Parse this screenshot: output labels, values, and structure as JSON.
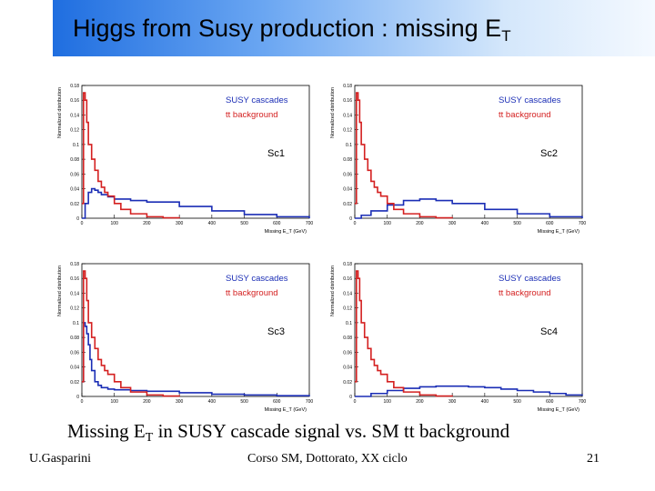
{
  "slide": {
    "title": "Higgs from Susy production : missing E",
    "title_sub": "T",
    "caption_pre": "Missing E",
    "caption_sub": "T",
    "caption_post": " in SUSY cascade signal vs. SM tt background",
    "footer_left": "U.Gasparini",
    "footer_center": "Corso SM, Dottorato, XX ciclo",
    "page_number": "21"
  },
  "colors": {
    "signal": "#1a2db5",
    "background": "#d42020",
    "title_bar": "#1f6ee0"
  },
  "chart_data": [
    {
      "type": "line",
      "panel_label": "Sc1",
      "xlabel": "Missing E_T (GeV)",
      "ylabel": "Normalized distribution",
      "xlim": [
        0,
        700
      ],
      "ylim": [
        0,
        0.18
      ],
      "xticks": [
        "0",
        "100",
        "200",
        "300",
        "400",
        "500",
        "600",
        "700"
      ],
      "yticks": [
        "0",
        "0.02",
        "0.04",
        "0.06",
        "0.08",
        "0.1",
        "0.12",
        "0.14",
        "0.16",
        "0.18"
      ],
      "legend": [
        "SUSY cascades",
        "tt background"
      ],
      "series": [
        {
          "name": "SUSY cascades",
          "x": [
            0,
            10,
            20,
            30,
            40,
            50,
            60,
            80,
            100,
            150,
            200,
            300,
            400,
            500,
            600,
            700
          ],
          "y": [
            0,
            0.02,
            0.035,
            0.04,
            0.038,
            0.035,
            0.032,
            0.029,
            0.026,
            0.024,
            0.022,
            0.016,
            0.01,
            0.005,
            0.002,
            0
          ]
        },
        {
          "name": "tt background",
          "x": [
            0,
            5,
            10,
            15,
            20,
            30,
            40,
            50,
            60,
            70,
            80,
            100,
            120,
            150,
            200,
            250,
            300
          ],
          "y": [
            0.02,
            0.17,
            0.16,
            0.13,
            0.1,
            0.08,
            0.065,
            0.05,
            0.042,
            0.035,
            0.03,
            0.02,
            0.012,
            0.006,
            0.002,
            0.0005,
            0
          ]
        }
      ]
    },
    {
      "type": "line",
      "panel_label": "Sc2",
      "xlabel": "Missing E_T (GeV)",
      "ylabel": "Normalized distribution",
      "xlim": [
        0,
        700
      ],
      "ylim": [
        0,
        0.18
      ],
      "xticks": [
        "0",
        "100",
        "200",
        "300",
        "400",
        "500",
        "600",
        "700"
      ],
      "yticks": [
        "0",
        "0.02",
        "0.04",
        "0.06",
        "0.08",
        "0.1",
        "0.12",
        "0.14",
        "0.16",
        "0.18"
      ],
      "legend": [
        "SUSY cascades",
        "tt background"
      ],
      "series": [
        {
          "name": "SUSY cascades",
          "x": [
            0,
            20,
            50,
            100,
            150,
            200,
            250,
            300,
            400,
            500,
            600,
            700
          ],
          "y": [
            0,
            0.004,
            0.01,
            0.018,
            0.024,
            0.026,
            0.024,
            0.02,
            0.012,
            0.006,
            0.002,
            0
          ]
        },
        {
          "name": "tt background",
          "x": [
            0,
            5,
            10,
            15,
            20,
            30,
            40,
            50,
            60,
            70,
            80,
            100,
            120,
            150,
            200,
            250,
            300
          ],
          "y": [
            0.02,
            0.17,
            0.16,
            0.13,
            0.1,
            0.08,
            0.065,
            0.05,
            0.042,
            0.035,
            0.03,
            0.02,
            0.012,
            0.006,
            0.002,
            0.0005,
            0
          ]
        }
      ]
    },
    {
      "type": "line",
      "panel_label": "Sc3",
      "xlabel": "Missing E_T (GeV)",
      "ylabel": "Normalized distribution",
      "xlim": [
        0,
        700
      ],
      "ylim": [
        0,
        0.18
      ],
      "xticks": [
        "0",
        "100",
        "200",
        "300",
        "400",
        "500",
        "600",
        "700"
      ],
      "yticks": [
        "0",
        "0.02",
        "0.04",
        "0.06",
        "0.08",
        "0.1",
        "0.12",
        "0.14",
        "0.16",
        "0.18"
      ],
      "legend": [
        "SUSY cascades",
        "tt background"
      ],
      "series": [
        {
          "name": "SUSY cascades",
          "x": [
            0,
            5,
            10,
            15,
            20,
            25,
            30,
            40,
            50,
            60,
            80,
            100,
            150,
            200,
            300,
            400,
            500,
            600,
            700
          ],
          "y": [
            0.02,
            0.1,
            0.095,
            0.085,
            0.07,
            0.05,
            0.035,
            0.02,
            0.015,
            0.012,
            0.01,
            0.009,
            0.008,
            0.007,
            0.005,
            0.003,
            0.002,
            0.001,
            0
          ]
        },
        {
          "name": "tt background",
          "x": [
            0,
            5,
            10,
            15,
            20,
            30,
            40,
            50,
            60,
            70,
            80,
            100,
            120,
            150,
            200,
            250,
            300
          ],
          "y": [
            0.02,
            0.17,
            0.16,
            0.13,
            0.1,
            0.08,
            0.065,
            0.05,
            0.042,
            0.035,
            0.03,
            0.02,
            0.012,
            0.006,
            0.002,
            0.0005,
            0
          ]
        }
      ]
    },
    {
      "type": "line",
      "panel_label": "Sc4",
      "xlabel": "Missing E_T (GeV)",
      "ylabel": "Normalized distribution",
      "xlim": [
        0,
        700
      ],
      "ylim": [
        0,
        0.18
      ],
      "xticks": [
        "0",
        "100",
        "200",
        "300",
        "400",
        "500",
        "600",
        "700"
      ],
      "yticks": [
        "0",
        "0.02",
        "0.04",
        "0.06",
        "0.08",
        "0.1",
        "0.12",
        "0.14",
        "0.16",
        "0.18"
      ],
      "legend": [
        "SUSY cascades",
        "tt background"
      ],
      "series": [
        {
          "name": "SUSY cascades",
          "x": [
            0,
            50,
            100,
            150,
            200,
            250,
            300,
            350,
            400,
            450,
            500,
            550,
            600,
            650,
            700
          ],
          "y": [
            0,
            0.004,
            0.008,
            0.011,
            0.013,
            0.014,
            0.014,
            0.013,
            0.012,
            0.01,
            0.008,
            0.006,
            0.004,
            0.002,
            0.001
          ]
        },
        {
          "name": "tt background",
          "x": [
            0,
            5,
            10,
            15,
            20,
            30,
            40,
            50,
            60,
            70,
            80,
            100,
            120,
            150,
            200,
            250,
            300
          ],
          "y": [
            0.02,
            0.17,
            0.16,
            0.13,
            0.1,
            0.08,
            0.065,
            0.05,
            0.042,
            0.035,
            0.03,
            0.02,
            0.012,
            0.006,
            0.002,
            0.0005,
            0
          ]
        }
      ]
    }
  ]
}
